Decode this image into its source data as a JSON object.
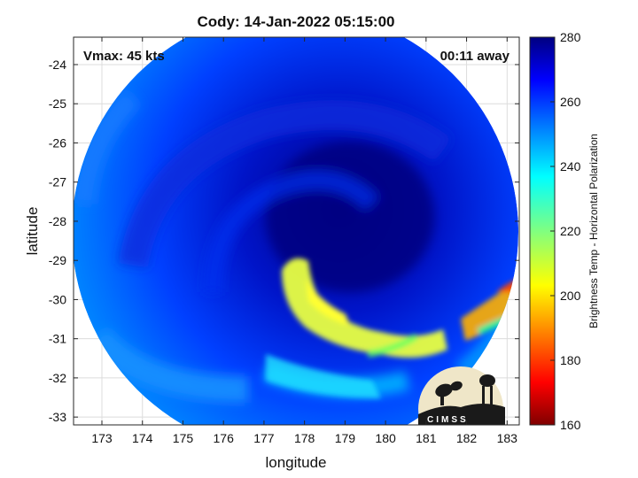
{
  "chart_data": {
    "type": "heatmap",
    "title": "Cody: 14-Jan-2022 05:15:00",
    "xlabel": "longitude",
    "ylabel": "latitude",
    "xlim": [
      172.3,
      183.3
    ],
    "ylim": [
      -33.2,
      -23.3
    ],
    "x_ticks": [
      173,
      174,
      175,
      176,
      177,
      178,
      179,
      180,
      181,
      182,
      183
    ],
    "x_tick_labels": [
      "173",
      "174",
      "175",
      "176",
      "177",
      "178",
      "179",
      "180",
      "181",
      "182",
      "183"
    ],
    "y_ticks": [
      -24,
      -25,
      -26,
      -27,
      -28,
      -29,
      -30,
      -31,
      -32,
      -33
    ],
    "y_tick_labels": [
      "-24",
      "-25",
      "-26",
      "-27",
      "-28",
      "-29",
      "-30",
      "-31",
      "-32",
      "-33"
    ],
    "grid": true,
    "annotations": {
      "vmax": "Vmax: 45 kts",
      "time_offset": "00:11 away"
    },
    "colorbar": {
      "label": "Brightness Temp - Horizontal Polarization",
      "range": [
        160,
        280
      ],
      "ticks": [
        160,
        180,
        200,
        220,
        240,
        260,
        280
      ],
      "tick_labels": [
        "160",
        "180",
        "200",
        "220",
        "240",
        "260",
        "280"
      ],
      "colormap": "jet"
    },
    "swath": {
      "center": [
        178.0,
        -28.0
      ],
      "approx_radius_deg": 5.0
    },
    "features": [
      {
        "description_value": 265,
        "lon": 179.0,
        "lat": -27.8
      },
      {
        "description_value": 215,
        "lon": 177.6,
        "lat": -30.0
      },
      {
        "description_value": 195,
        "lon": 182.7,
        "lat": -30.5
      }
    ]
  },
  "logo": {
    "text": "CIMSS"
  },
  "colors": {
    "background": "#ffffff",
    "axis": "#262626",
    "grid": "#d9d9d9",
    "cold_core": "#00008f",
    "warm_band": "#ffff00"
  }
}
